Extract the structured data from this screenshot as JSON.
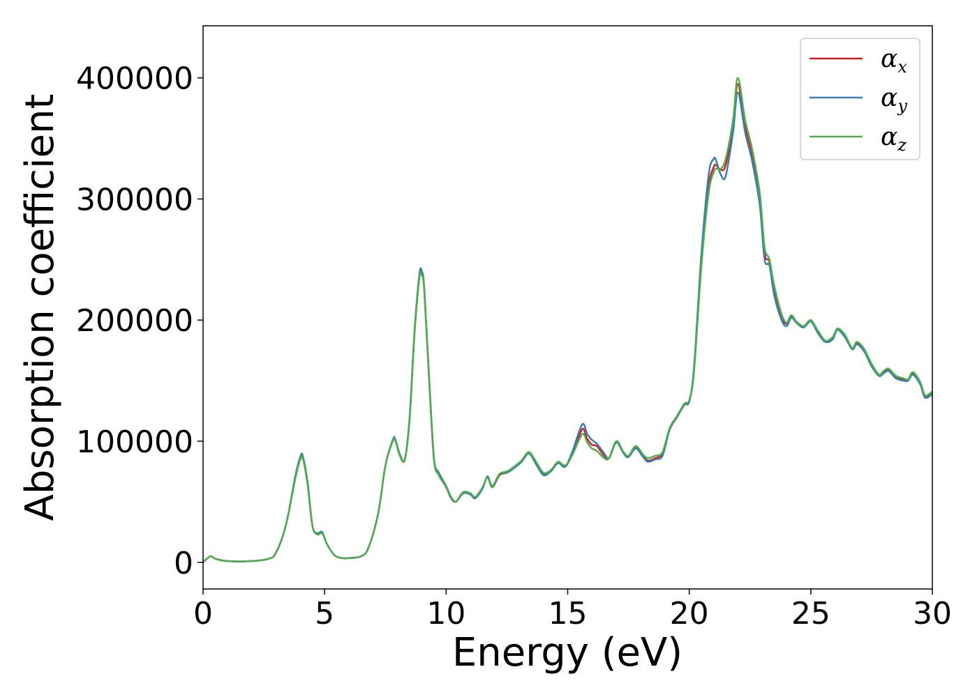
{
  "chart_data": {
    "type": "line",
    "xlabel": "Energy (eV)",
    "ylabel": "Absorption coefficient",
    "xlim": [
      0,
      30
    ],
    "ylim": [
      -22000,
      443000
    ],
    "xticks": [
      0,
      5,
      10,
      15,
      20,
      25,
      30
    ],
    "yticks": [
      0,
      100000,
      200000,
      300000,
      400000
    ],
    "grid": false,
    "legend_position": "top-right",
    "x": [
      0,
      0.3,
      0.5,
      1,
      2,
      2.7,
      3,
      3.4,
      3.8,
      4,
      4.1,
      4.3,
      4.5,
      4.7,
      4.9,
      5.1,
      5.4,
      5.7,
      6,
      6.5,
      6.8,
      7.2,
      7.5,
      7.8,
      7.9,
      8.1,
      8.3,
      8.5,
      8.7,
      8.9,
      9,
      9.1,
      9.3,
      9.5,
      9.7,
      10,
      10.2,
      10.4,
      10.7,
      11,
      11.2,
      11.5,
      11.7,
      11.9,
      12.2,
      12.5,
      12.8,
      13.1,
      13.4,
      13.7,
      14,
      14.3,
      14.6,
      14.9,
      15.2,
      15.6,
      15.8,
      16,
      16.2,
      16.5,
      16.7,
      17,
      17.3,
      17.5,
      17.8,
      18.1,
      18.3,
      18.6,
      18.9,
      19.2,
      19.5,
      19.8,
      20,
      20.2,
      20.5,
      20.8,
      21,
      21.1,
      21.3,
      21.5,
      21.8,
      22,
      22.3,
      22.6,
      22.9,
      23.1,
      23.3,
      23.5,
      23.8,
      24,
      24.2,
      24.4,
      24.7,
      25,
      25.3,
      25.6,
      25.9,
      26.1,
      26.4,
      26.7,
      26.9,
      27.2,
      27.5,
      27.8,
      28,
      28.2,
      28.5,
      28.8,
      29,
      29.2,
      29.5,
      29.7,
      30
    ],
    "series": [
      {
        "name": "α",
        "subscript": "x",
        "color": "#e41a1c",
        "values": [
          0,
          5000,
          3000,
          1000,
          1000,
          3000,
          8000,
          30000,
          70000,
          86000,
          87000,
          65000,
          30000,
          23000,
          24000,
          15000,
          6000,
          3500,
          3500,
          5000,
          12000,
          40000,
          80000,
          100000,
          101000,
          88000,
          85000,
          120000,
          190000,
          236000,
          238000,
          225000,
          150000,
          85000,
          72000,
          62000,
          53000,
          50000,
          57000,
          56000,
          53000,
          62000,
          70000,
          62000,
          72000,
          74000,
          78000,
          83000,
          90000,
          82000,
          73000,
          75000,
          82000,
          79000,
          90000,
          110000,
          102000,
          97000,
          96000,
          88000,
          86000,
          99000,
          90000,
          87000,
          95000,
          88000,
          84000,
          86000,
          90000,
          110000,
          120000,
          130000,
          133000,
          160000,
          250000,
          310000,
          326000,
          328000,
          324000,
          328000,
          360000,
          395000,
          360000,
          335000,
          300000,
          255000,
          248000,
          225000,
          203000,
          197000,
          203000,
          198000,
          194000,
          199000,
          190000,
          182000,
          185000,
          192000,
          187000,
          176000,
          181000,
          175000,
          163000,
          155000,
          157000,
          159000,
          153000,
          151000,
          150000,
          156000,
          148000,
          137000,
          140000
        ]
      },
      {
        "name": "α",
        "subscript": "y",
        "color": "#377eb8",
        "values": [
          0,
          5000,
          3000,
          1000,
          1000,
          3000,
          8000,
          30000,
          72000,
          87000,
          88000,
          66000,
          30000,
          24000,
          25000,
          15000,
          6000,
          3500,
          3500,
          5000,
          12000,
          40000,
          80000,
          101000,
          102000,
          89000,
          85000,
          121000,
          191000,
          238000,
          240000,
          226000,
          152000,
          86000,
          74000,
          63000,
          54000,
          50000,
          57000,
          56000,
          53000,
          61000,
          71000,
          63000,
          73000,
          74000,
          78000,
          83000,
          90000,
          81000,
          72000,
          75000,
          82000,
          79000,
          92000,
          114000,
          106000,
          101000,
          98000,
          90000,
          86000,
          99000,
          90000,
          87000,
          94000,
          87000,
          83000,
          85000,
          88000,
          110000,
          120000,
          130000,
          133000,
          162000,
          255000,
          320000,
          333000,
          332000,
          320000,
          319000,
          355000,
          388000,
          355000,
          330000,
          295000,
          250000,
          245000,
          220000,
          200000,
          195000,
          202000,
          198000,
          194000,
          199000,
          189000,
          182000,
          184000,
          192000,
          186000,
          176000,
          180000,
          174000,
          162000,
          154000,
          156000,
          158000,
          152000,
          150000,
          150000,
          155000,
          147000,
          136000,
          139000
        ]
      },
      {
        "name": "α",
        "subscript": "z",
        "color": "#4daf4a",
        "values": [
          0,
          5000,
          3000,
          1000,
          1000,
          3000,
          8000,
          30000,
          70000,
          85000,
          86000,
          64000,
          30000,
          23000,
          24000,
          15000,
          6000,
          3500,
          3500,
          5000,
          12000,
          40000,
          80000,
          100000,
          101000,
          88000,
          85000,
          119000,
          189000,
          235000,
          237000,
          224000,
          150000,
          85000,
          72000,
          62000,
          53000,
          50000,
          58000,
          57000,
          54000,
          62000,
          70000,
          62000,
          73000,
          75000,
          79000,
          84000,
          91000,
          83000,
          74000,
          76000,
          83000,
          80000,
          89000,
          106000,
          99000,
          94000,
          92000,
          86000,
          86000,
          100000,
          91000,
          88000,
          96000,
          89000,
          86000,
          88000,
          91000,
          111000,
          121000,
          131000,
          134000,
          158000,
          245000,
          305000,
          322000,
          325000,
          325000,
          333000,
          365000,
          400000,
          365000,
          340000,
          305000,
          260000,
          250000,
          228000,
          205000,
          198000,
          204000,
          199000,
          195000,
          200000,
          191000,
          183000,
          186000,
          193000,
          188000,
          177000,
          182000,
          176000,
          164000,
          155000,
          158000,
          160000,
          154000,
          152000,
          151000,
          157000,
          149000,
          138000,
          141000
        ]
      }
    ]
  }
}
